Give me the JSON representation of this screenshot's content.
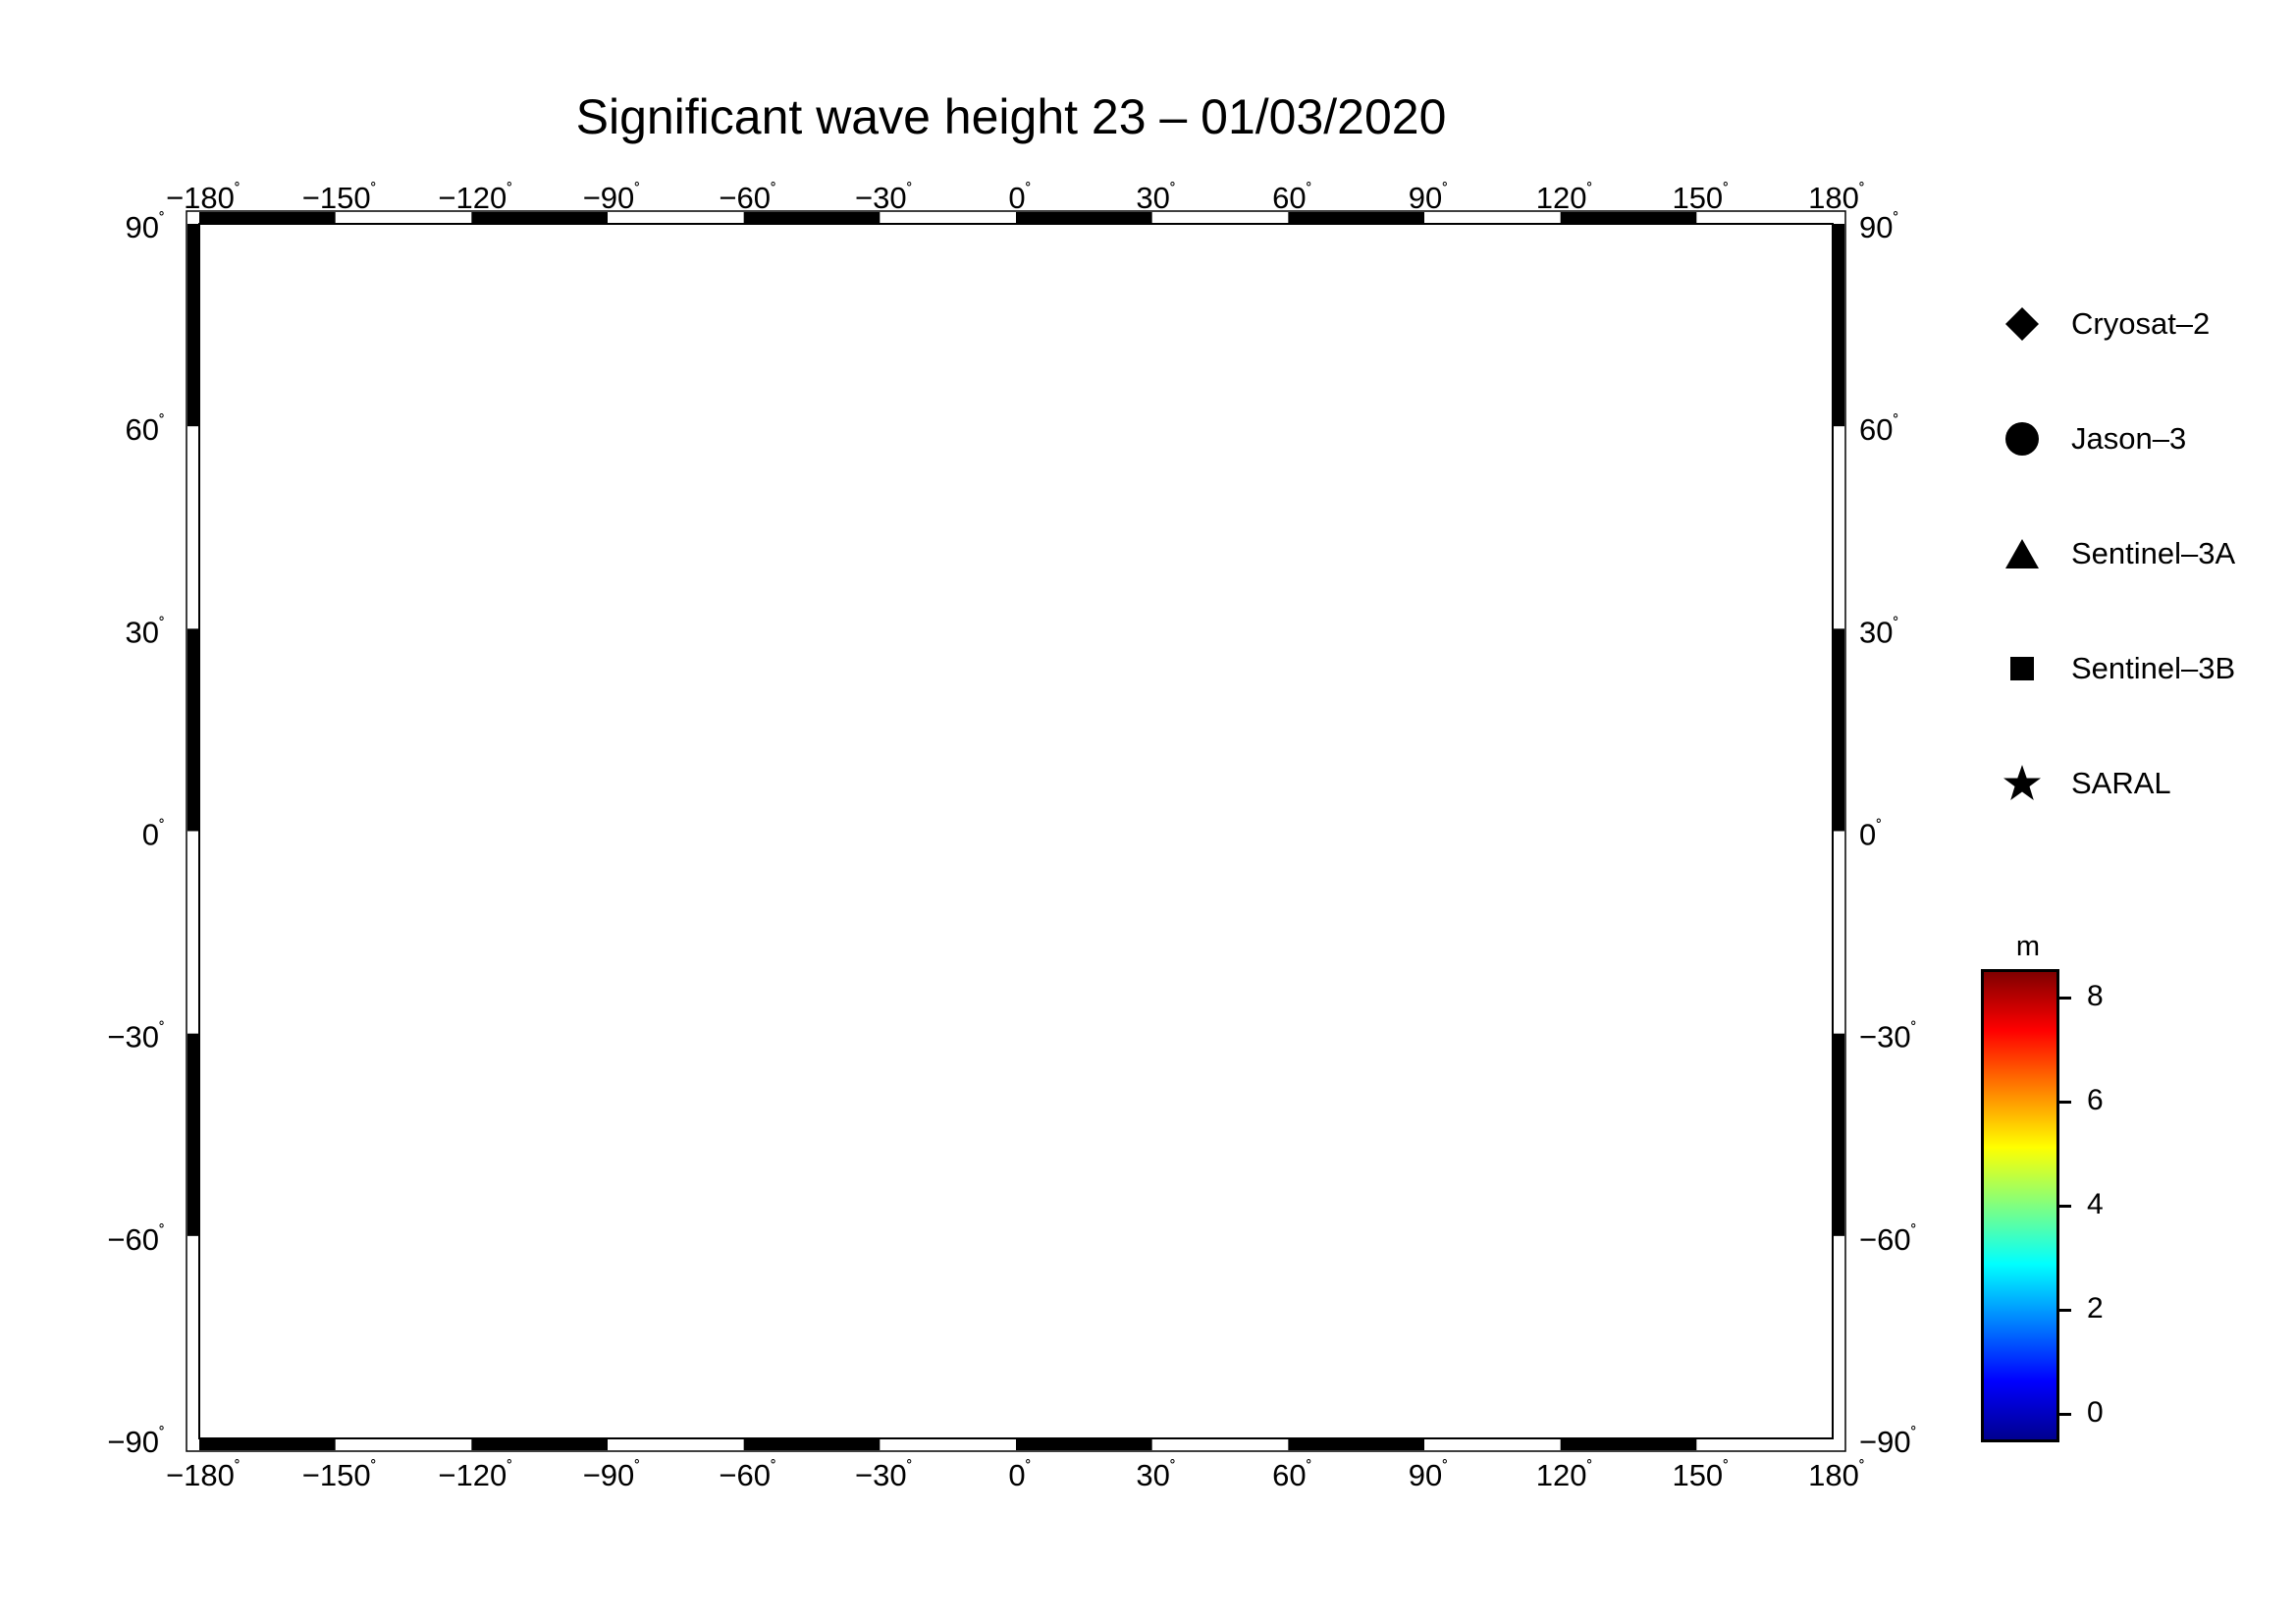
{
  "title": "Significant wave height 23 – 01/03/2020",
  "axes": {
    "lon_labels": [
      "−180",
      "−150",
      "−120",
      "−90",
      "−60",
      "−30",
      "0",
      "30",
      "60",
      "90",
      "120",
      "150",
      "180"
    ],
    "lat_labels": [
      "90",
      "60",
      "30",
      "0",
      "−30",
      "−60",
      "−90"
    ],
    "degree_symbol": "˚"
  },
  "legend": {
    "items": [
      {
        "label": "Cryosat–2",
        "icon": "diamond-icon"
      },
      {
        "label": "Jason–3",
        "icon": "circle-icon"
      },
      {
        "label": "Sentinel–3A",
        "icon": "triangle-icon"
      },
      {
        "label": "Sentinel–3B",
        "icon": "square-icon"
      },
      {
        "label": "SARAL",
        "icon": "star-icon"
      }
    ]
  },
  "colorbar": {
    "unit": "m",
    "tick_labels": [
      "8",
      "6",
      "4",
      "2",
      "0"
    ],
    "range": [
      -0.5,
      8.5
    ],
    "colors": [
      "#00008f",
      "#0000ff",
      "#0080ff",
      "#00ffff",
      "#80ff80",
      "#ffff00",
      "#ff8000",
      "#ff0000",
      "#800000"
    ]
  },
  "colors": {
    "land": "#bfbfbf",
    "ice": "#ffffff",
    "grid": "#000000"
  }
}
